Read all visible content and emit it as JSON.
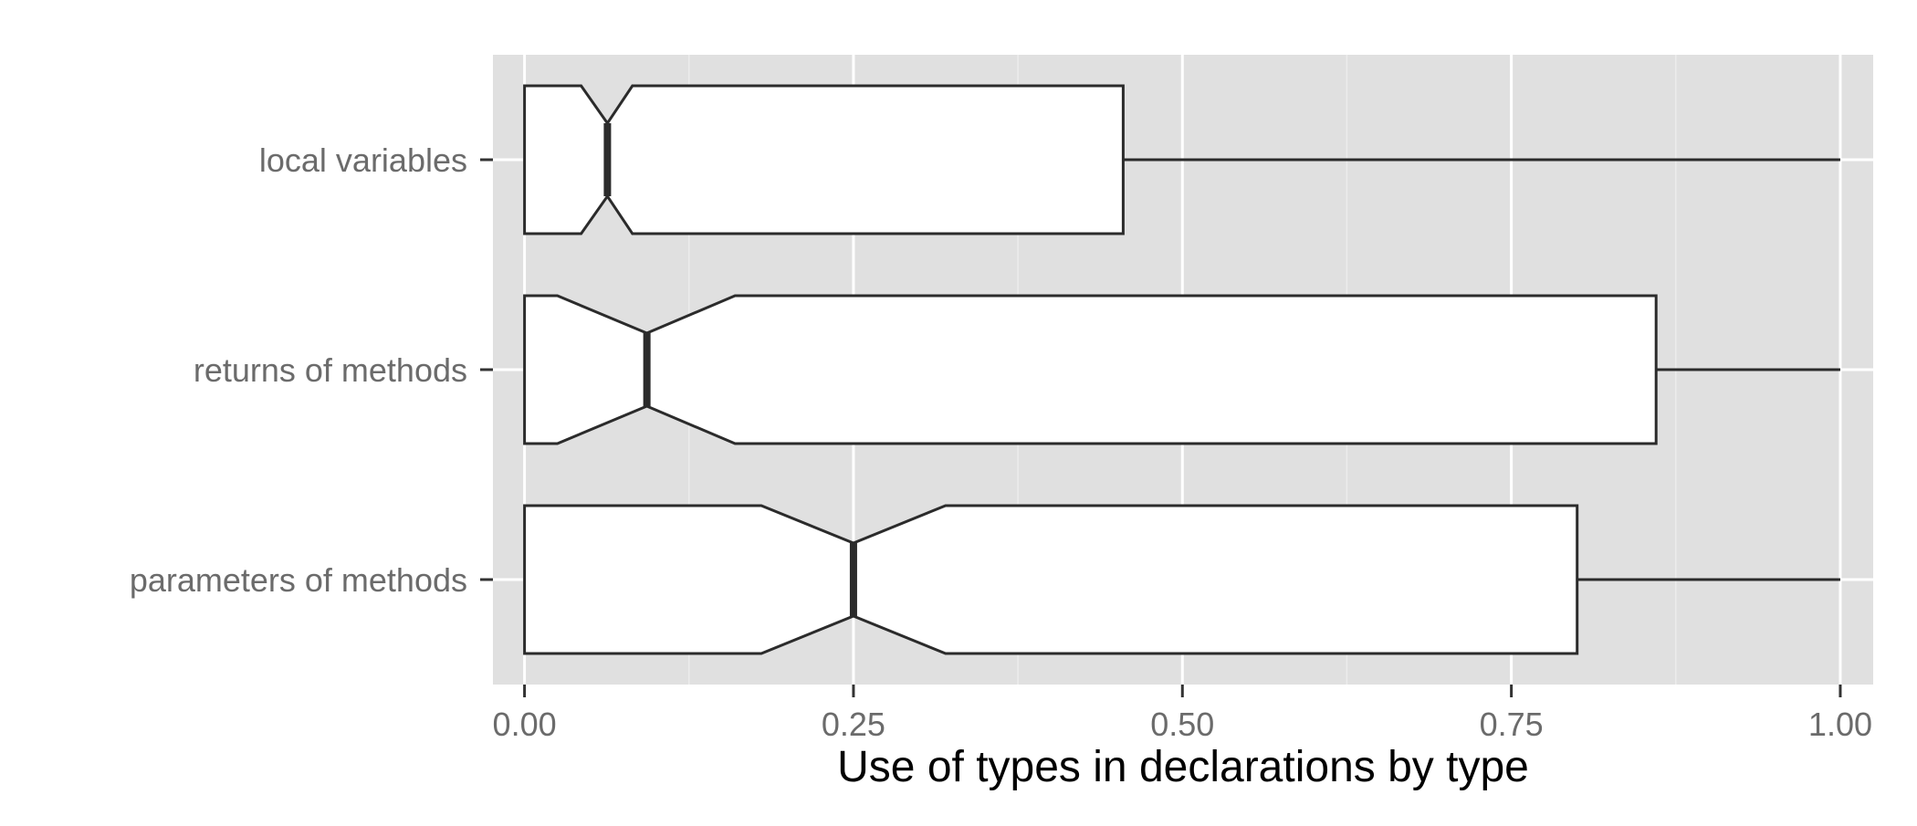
{
  "chart_data": {
    "type": "boxplot",
    "orientation": "horizontal",
    "notched": true,
    "title": "",
    "xlabel": "Use of types in declarations by type",
    "ylabel": "",
    "xlim": [
      -0.024,
      1.025
    ],
    "x_ticks": [
      0,
      0.25,
      0.5,
      0.75,
      1
    ],
    "x_tick_labels": [
      "0.00",
      "0.25",
      "0.50",
      "0.75",
      "1.00"
    ],
    "categories": [
      "parameters of methods",
      "returns of methods",
      "local variables"
    ],
    "boxes": [
      {
        "category": "parameters of methods",
        "whisker_low": 0.0,
        "q1": 0.0,
        "median": 0.25,
        "q3": 0.8,
        "whisker_high": 1.0,
        "notch_low": 0.18,
        "notch_high": 0.32
      },
      {
        "category": "returns of methods",
        "whisker_low": 0.0,
        "q1": 0.0,
        "median": 0.093,
        "q3": 0.86,
        "whisker_high": 1.0,
        "notch_low": 0.025,
        "notch_high": 0.16
      },
      {
        "category": "local variables",
        "whisker_low": 0.0,
        "q1": 0.0,
        "median": 0.063,
        "q3": 0.455,
        "whisker_high": 1.0,
        "notch_low": 0.043,
        "notch_high": 0.082
      }
    ],
    "grid": true,
    "colors": {
      "panel_background": "#e0e0e0",
      "grid_major": "#ffffff",
      "grid_minor": "#ececec",
      "box_fill": "#ffffff",
      "box_stroke": "#2b2b2b",
      "tick_label": "#6b6b6b",
      "axis_title": "#000000"
    }
  }
}
